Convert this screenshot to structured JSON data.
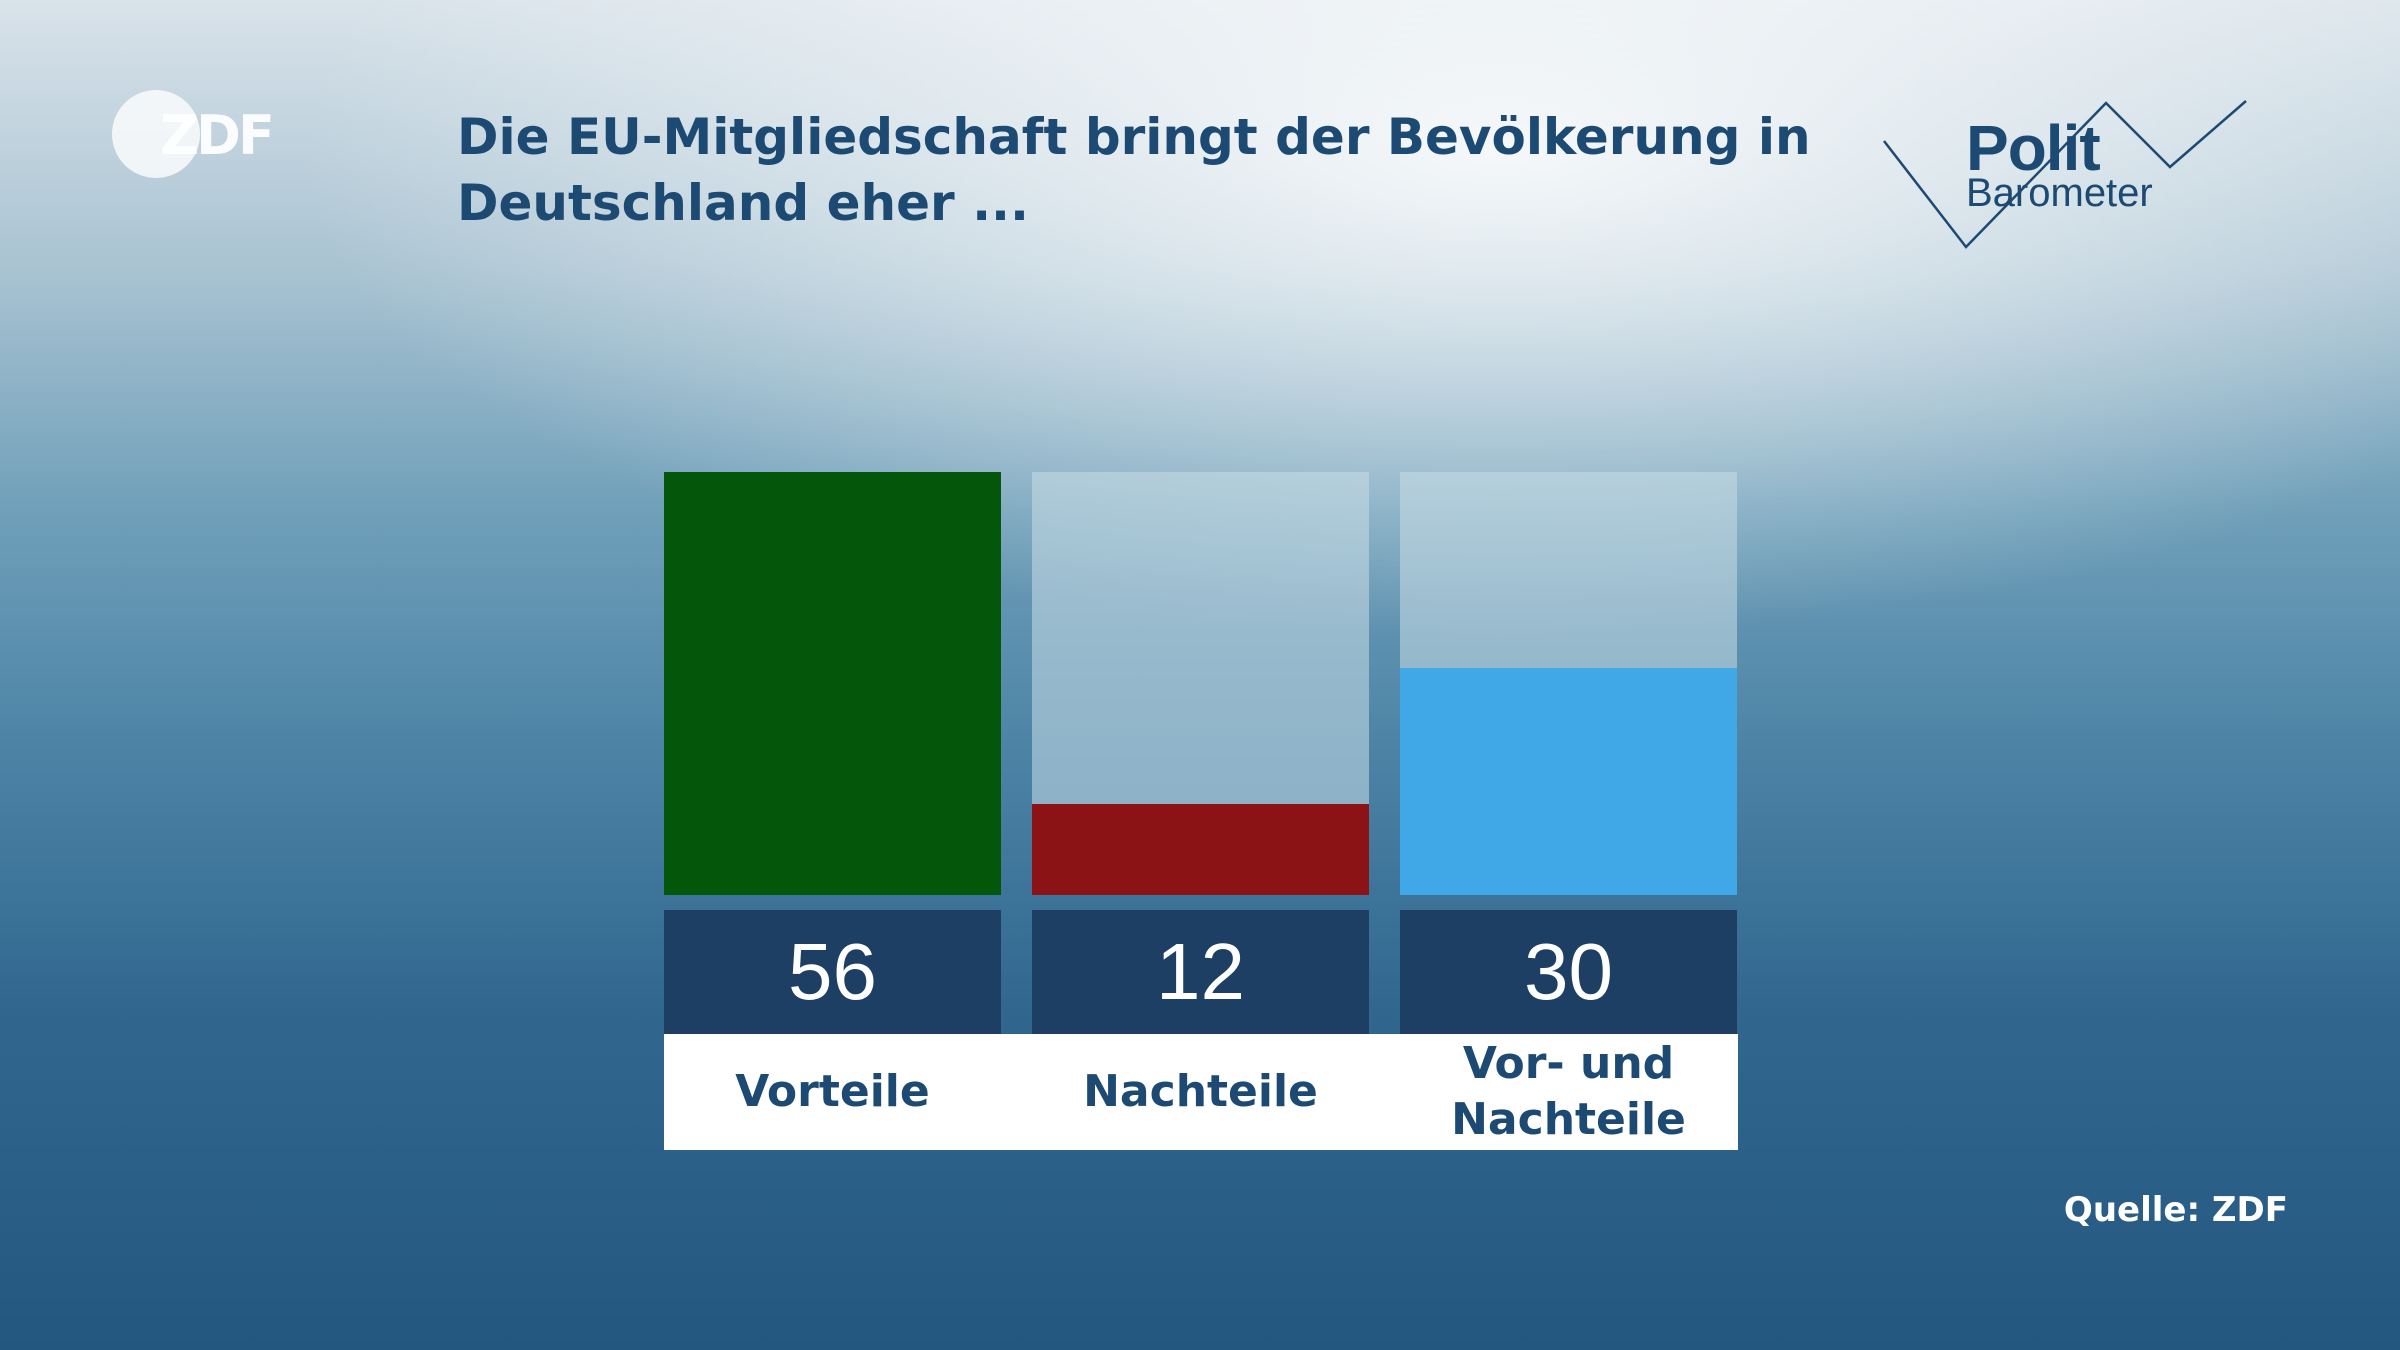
{
  "logo": {
    "text": "ZDF"
  },
  "brand": {
    "line1": "Polit",
    "line2": "Barometer"
  },
  "source": "Quelle: ZDF",
  "chart_data": {
    "type": "bar",
    "title": "Die EU-Mitgliedschaft bringt der Bevölkerung in Deutschland eher ...",
    "categories": [
      "Vorteile",
      "Nachteile",
      "Vor- und\nNachteile"
    ],
    "values": [
      56,
      12,
      30
    ],
    "value_labels": [
      "56",
      "12",
      "30"
    ],
    "colors": [
      "#03560a",
      "#8b1315",
      "#41a8e8"
    ],
    "ylim": [
      0,
      56
    ],
    "unit": "",
    "grid": false,
    "legend": "none"
  }
}
